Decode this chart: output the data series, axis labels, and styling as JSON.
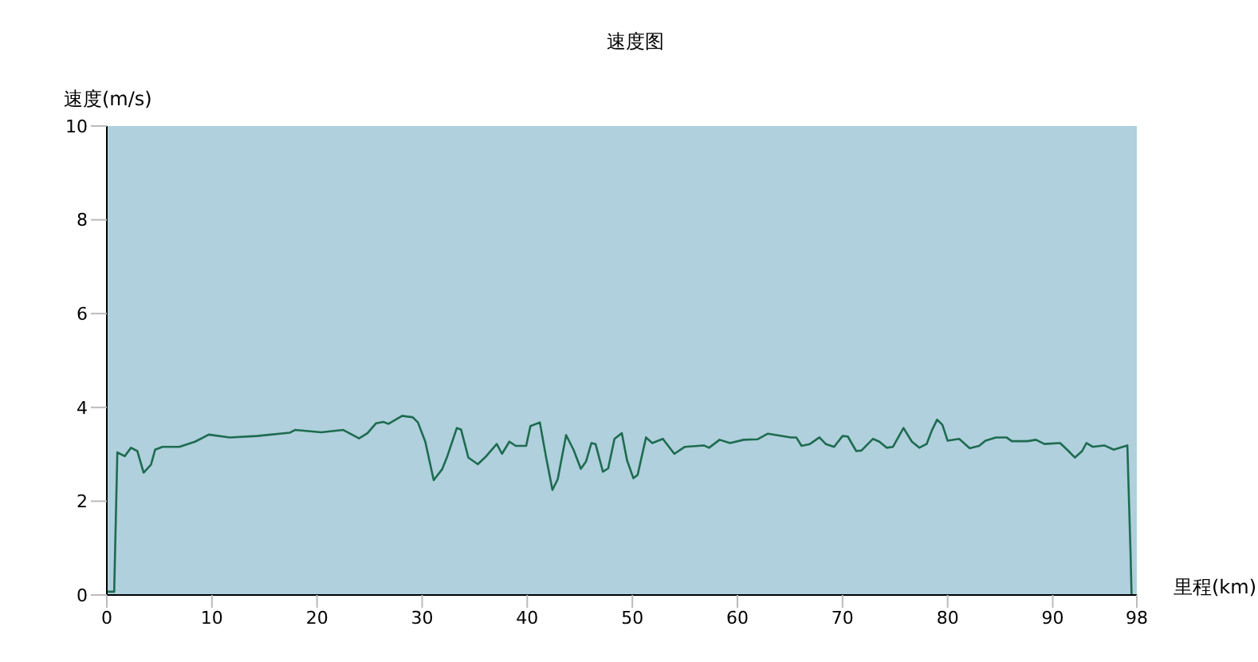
{
  "chart_data": {
    "type": "line",
    "title": "速度图",
    "xlabel": "里程(km)",
    "ylabel": "速度(m/s)",
    "xlim": [
      0,
      98
    ],
    "xticks": [
      0,
      10,
      20,
      30,
      40,
      50,
      60,
      70,
      80,
      90,
      98
    ],
    "ylim": [
      0,
      10
    ],
    "yticks": [
      0,
      2,
      4,
      6,
      8,
      10
    ],
    "grid": false,
    "marker": "none",
    "line_style": "solid",
    "series": [
      {
        "color": "#1e6b50",
        "x": [
          0.05,
          0.7,
          1.0,
          1.7,
          2.3,
          2.9,
          3.5,
          4.2,
          4.6,
          5.3,
          6.9,
          8.4,
          9.7,
          11.7,
          14.3,
          17.4,
          17.9,
          20.4,
          22.5,
          24.0,
          24.8,
          25.6,
          26.3,
          26.8,
          28.1,
          29.1,
          29.6,
          30.3,
          31.1,
          31.9,
          32.4,
          33.3,
          33.7,
          34.4,
          35.3,
          36.1,
          37.1,
          37.6,
          38.3,
          38.9,
          39.9,
          40.3,
          41.2,
          41.8,
          42.4,
          42.9,
          43.7,
          44.4,
          45.1,
          45.6,
          46.1,
          46.5,
          47.2,
          47.7,
          48.3,
          49.0,
          49.5,
          50.1,
          50.5,
          51.3,
          51.9,
          52.9,
          54.0,
          55.0,
          56.8,
          57.3,
          58.3,
          59.3,
          60.6,
          61.9,
          62.9,
          65.1,
          65.6,
          66.1,
          66.9,
          67.8,
          68.4,
          69.2,
          70.0,
          70.5,
          71.3,
          71.8,
          72.9,
          73.5,
          74.2,
          74.8,
          75.8,
          76.6,
          77.3,
          78.0,
          78.5,
          79.0,
          79.5,
          80.0,
          81.1,
          82.1,
          83.0,
          83.6,
          84.6,
          85.6,
          86.1,
          87.6,
          88.4,
          89.2,
          90.7,
          91.5,
          92.1,
          92.8,
          93.2,
          93.8,
          94.9,
          95.8,
          97.1,
          97.2,
          97.4,
          97.5
        ],
        "values": [
          0.07,
          0.07,
          3.04,
          2.96,
          3.14,
          3.07,
          2.61,
          2.78,
          3.1,
          3.16,
          3.16,
          3.27,
          3.42,
          3.36,
          3.39,
          3.46,
          3.52,
          3.47,
          3.52,
          3.34,
          3.45,
          3.66,
          3.69,
          3.65,
          3.82,
          3.79,
          3.68,
          3.27,
          2.45,
          2.68,
          2.96,
          3.56,
          3.53,
          2.93,
          2.79,
          2.96,
          3.22,
          3.01,
          3.27,
          3.18,
          3.18,
          3.6,
          3.68,
          2.93,
          2.24,
          2.47,
          3.41,
          3.1,
          2.69,
          2.85,
          3.24,
          3.22,
          2.63,
          2.7,
          3.33,
          3.45,
          2.87,
          2.49,
          2.56,
          3.36,
          3.24,
          3.33,
          3.01,
          3.16,
          3.19,
          3.14,
          3.31,
          3.24,
          3.31,
          3.32,
          3.44,
          3.36,
          3.36,
          3.18,
          3.22,
          3.36,
          3.22,
          3.16,
          3.39,
          3.38,
          3.07,
          3.08,
          3.33,
          3.27,
          3.14,
          3.16,
          3.56,
          3.27,
          3.14,
          3.22,
          3.51,
          3.74,
          3.63,
          3.29,
          3.33,
          3.13,
          3.18,
          3.29,
          3.36,
          3.36,
          3.28,
          3.28,
          3.31,
          3.22,
          3.24,
          3.07,
          2.93,
          3.07,
          3.24,
          3.16,
          3.19,
          3.1,
          3.19,
          2.42,
          0.91,
          0.0
        ]
      }
    ]
  }
}
